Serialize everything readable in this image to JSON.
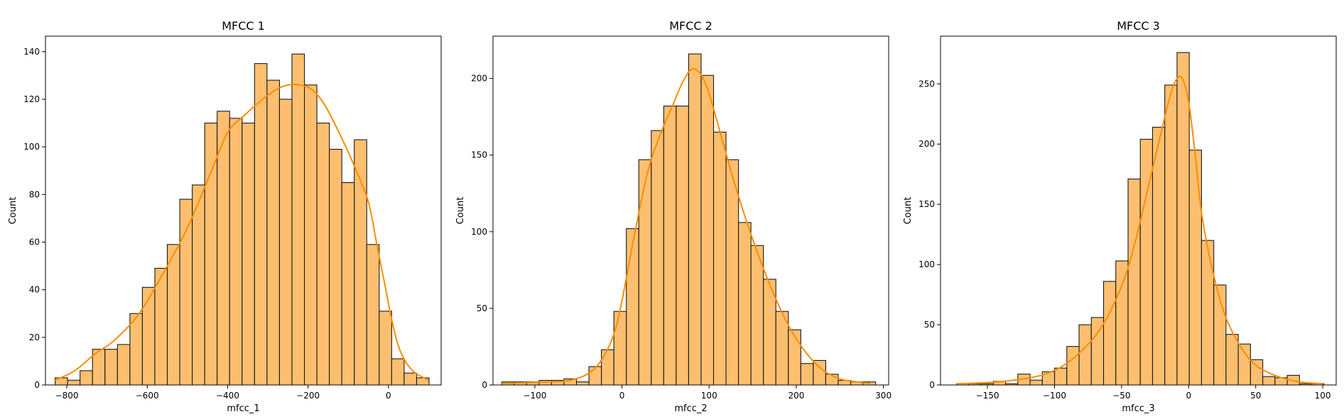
{
  "colors": {
    "bar_fill": "#fdbf6f",
    "bar_edge": "#1a1a1a",
    "kde_line": "#ff8c00",
    "axes": "#000000"
  },
  "chart_data": [
    {
      "type": "bar",
      "title": "MFCC 1",
      "xlabel": "mfcc_1",
      "ylabel": "Count",
      "xlim": [
        -853,
        131
      ],
      "ylim": [
        0,
        146.5
      ],
      "xticks": [
        -800,
        -600,
        -400,
        -200,
        0
      ],
      "xtick_labels": [
        "−800",
        "−600",
        "−400",
        "−200",
        "0"
      ],
      "yticks": [
        0,
        20,
        40,
        60,
        80,
        100,
        120,
        140
      ],
      "ytick_labels": [
        "0",
        "20",
        "40",
        "60",
        "80",
        "100",
        "120",
        "140"
      ],
      "bin_start": -829,
      "bin_width": 31,
      "counts": [
        3,
        2,
        6,
        15,
        15,
        17,
        30,
        41,
        49,
        59,
        78,
        84,
        110,
        115,
        112,
        110,
        135,
        128,
        120,
        139,
        126,
        110,
        99,
        85,
        103,
        59,
        31,
        11,
        5,
        3
      ],
      "kde": {
        "x": [
          -829,
          -780,
          -730,
          -680,
          -620,
          -560,
          -500,
          -440,
          -400,
          -360,
          -320,
          -280,
          -250,
          -220,
          -190,
          -160,
          -120,
          -80,
          -50,
          -30,
          -10,
          10,
          30,
          60,
          100
        ],
        "y": [
          2,
          6,
          13,
          19,
          30,
          47,
          66,
          90,
          106,
          113,
          119,
          124,
          126,
          126,
          124,
          118,
          105,
          90,
          77,
          60,
          43,
          26,
          14,
          6,
          2
        ]
      },
      "grid": false,
      "legend": "none"
    },
    {
      "type": "bar",
      "title": "MFCC 2",
      "xlabel": "mfcc_2",
      "ylabel": "Count",
      "xlim": [
        -148,
        306
      ],
      "ylim": [
        0,
        227.6
      ],
      "xticks": [
        -100,
        0,
        100,
        200,
        300
      ],
      "xtick_labels": [
        "−100",
        "0",
        "100",
        "200",
        "300"
      ],
      "yticks": [
        0,
        50,
        100,
        150,
        200
      ],
      "ytick_labels": [
        "0",
        "50",
        "100",
        "150",
        "200"
      ],
      "bin_start": -138,
      "bin_width": 14.3,
      "counts": [
        2,
        2,
        2,
        3,
        3,
        4,
        2,
        12,
        23,
        48,
        102,
        147,
        166,
        182,
        182,
        216,
        202,
        165,
        147,
        106,
        91,
        69,
        48,
        36,
        14,
        16,
        7,
        3,
        2,
        2
      ],
      "kde": {
        "x": [
          -138,
          -110,
          -80,
          -60,
          -40,
          -25,
          -10,
          0,
          15,
          30,
          45,
          60,
          70,
          80,
          90,
          100,
          115,
          130,
          150,
          170,
          190,
          210,
          230,
          250,
          270,
          285
        ],
        "y": [
          1,
          1.5,
          2,
          3,
          7,
          15,
          32,
          55,
          100,
          140,
          165,
          185,
          198,
          206,
          203,
          190,
          160,
          130,
          95,
          65,
          40,
          22,
          10,
          4,
          2,
          1
        ]
      },
      "grid": false,
      "legend": "none"
    },
    {
      "type": "bar",
      "title": "MFCC 3",
      "xlabel": "mfcc_3",
      "ylabel": "Count",
      "xlim": [
        -185,
        110
      ],
      "ylim": [
        0,
        289.6
      ],
      "xticks": [
        -150,
        -100,
        -50,
        0,
        50,
        100
      ],
      "xtick_labels": [
        "−150",
        "−100",
        "−50",
        "0",
        "50",
        "100"
      ],
      "yticks": [
        0,
        50,
        100,
        150,
        200,
        250
      ],
      "ytick_labels": [
        "0",
        "50",
        "100",
        "150",
        "200",
        "250"
      ],
      "bin_start": -173,
      "bin_width": 9.13,
      "counts": [
        1,
        1,
        1,
        3,
        1,
        9,
        4,
        11,
        14,
        32,
        50,
        56,
        86,
        103,
        171,
        204,
        214,
        249,
        276,
        195,
        120,
        83,
        42,
        34,
        21,
        7,
        6,
        8,
        1,
        1
      ],
      "kde": {
        "x": [
          -173,
          -150,
          -130,
          -110,
          -95,
          -80,
          -65,
          -50,
          -40,
          -30,
          -20,
          -15,
          -10,
          -5,
          0,
          5,
          10,
          20,
          30,
          45,
          60,
          80,
          100
        ],
        "y": [
          1,
          2,
          4,
          8,
          15,
          28,
          48,
          82,
          118,
          165,
          212,
          235,
          252,
          255,
          235,
          190,
          140,
          85,
          50,
          22,
          10,
          3,
          1
        ]
      },
      "grid": false,
      "legend": "none"
    }
  ]
}
